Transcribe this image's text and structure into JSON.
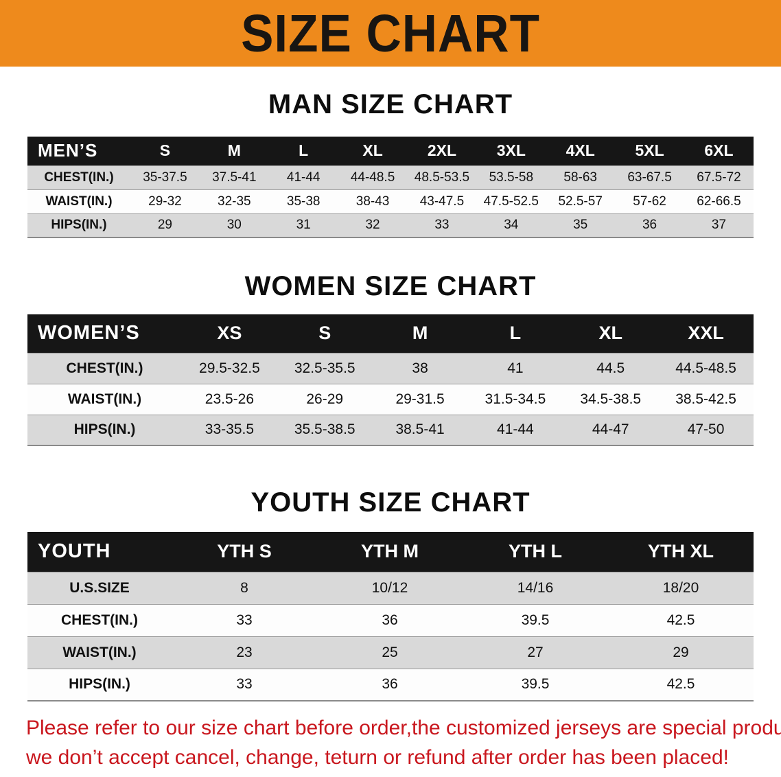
{
  "banner": {
    "title": "SIZE CHART"
  },
  "sections": [
    {
      "id": "men",
      "title": "MAN SIZE CHART",
      "header": [
        "MEN’S",
        "S",
        "M",
        "L",
        "XL",
        "2XL",
        "3XL",
        "4XL",
        "5XL",
        "6XL"
      ],
      "rows": [
        [
          "CHEST(IN.)",
          "35-37.5",
          "37.5-41",
          "41-44",
          "44-48.5",
          "48.5-53.5",
          "53.5-58",
          "58-63",
          "63-67.5",
          "67.5-72"
        ],
        [
          "WAIST(IN.)",
          "29-32",
          "32-35",
          "35-38",
          "38-43",
          "43-47.5",
          "47.5-52.5",
          "52.5-57",
          "57-62",
          "62-66.5"
        ],
        [
          "HIPS(IN.)",
          "29",
          "30",
          "31",
          "32",
          "33",
          "34",
          "35",
          "36",
          "37"
        ]
      ]
    },
    {
      "id": "women",
      "title": "WOMEN SIZE CHART",
      "header": [
        "WOMEN’S",
        "XS",
        "S",
        "M",
        "L",
        "XL",
        "XXL"
      ],
      "rows": [
        [
          "CHEST(IN.)",
          "29.5-32.5",
          "32.5-35.5",
          "38",
          "41",
          "44.5",
          "44.5-48.5"
        ],
        [
          "WAIST(IN.)",
          "23.5-26",
          "26-29",
          "29-31.5",
          "31.5-34.5",
          "34.5-38.5",
          "38.5-42.5"
        ],
        [
          "HIPS(IN.)",
          "33-35.5",
          "35.5-38.5",
          "38.5-41",
          "41-44",
          "44-47",
          "47-50"
        ]
      ]
    },
    {
      "id": "youth",
      "title": "YOUTH SIZE CHART",
      "header": [
        "YOUTH",
        "YTH S",
        "YTH M",
        "YTH L",
        "YTH XL"
      ],
      "rows": [
        [
          "U.S.SIZE",
          "8",
          "10/12",
          "14/16",
          "18/20"
        ],
        [
          "CHEST(IN.)",
          "33",
          "36",
          "39.5",
          "42.5"
        ],
        [
          "WAIST(IN.)",
          "23",
          "25",
          "27",
          "29"
        ],
        [
          "HIPS(IN.)",
          "33",
          "36",
          "39.5",
          "42.5"
        ]
      ]
    }
  ],
  "footer": {
    "line1": "Please refer to our size chart before order,the customized jerseys are special products,",
    "line2": "we don’t accept cancel, change, teturn or refund after order has been placed!"
  },
  "colors": {
    "banner-orange": "#ee8a1c",
    "header-black": "#161616",
    "row-gray": "#d9d9d9",
    "warning-red": "#c9171e"
  }
}
